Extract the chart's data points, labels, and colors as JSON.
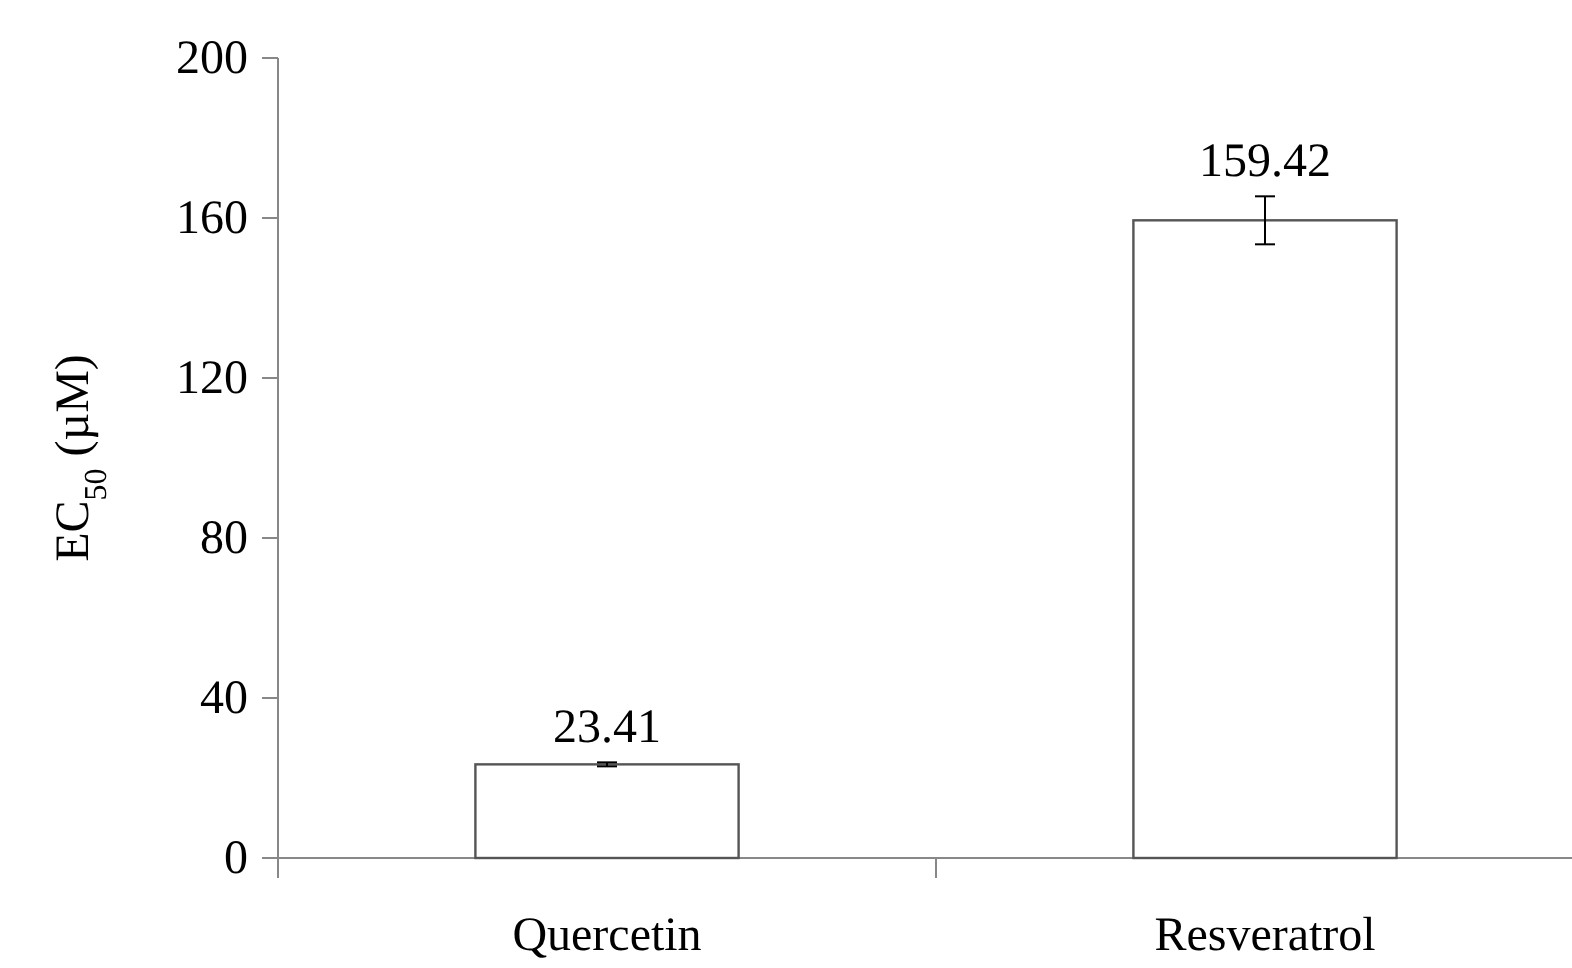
{
  "chart_data": {
    "type": "bar",
    "ylabel": "EC$_{50}$ (µM)",
    "categories": [
      "Quercetin",
      "Resveratrol"
    ],
    "values": [
      23.41,
      159.42
    ],
    "errors": [
      0.5,
      6
    ],
    "color": "#ffffff",
    "data_labels": true,
    "ylim": [
      0,
      200
    ],
    "yticks": [
      0,
      40,
      80,
      120,
      160,
      200
    ],
    "grid": false
  }
}
